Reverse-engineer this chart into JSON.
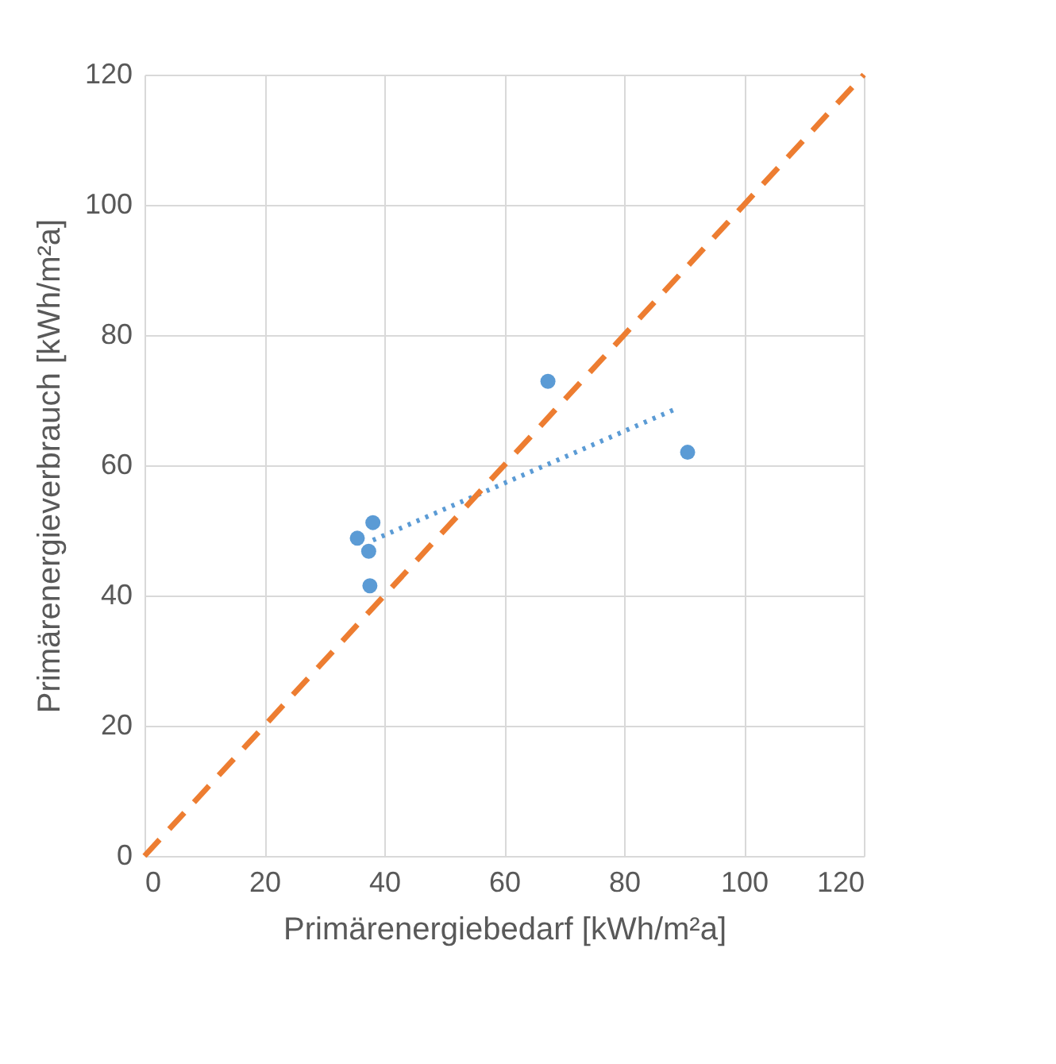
{
  "chart_data": {
    "type": "scatter",
    "xlabel": "Primärenergiebedarf [kWh/m²a]",
    "ylabel": "Primärenergieverbrauch [kWh/m²a]",
    "xlim": [
      0,
      120
    ],
    "ylim": [
      0,
      120
    ],
    "xticks": [
      0,
      20,
      40,
      60,
      80,
      100,
      120
    ],
    "yticks": [
      0,
      20,
      40,
      60,
      80,
      100,
      120
    ],
    "grid": true,
    "series": [
      {
        "marker": "circle",
        "color": "#5b9bd5",
        "x": [
          35.5,
          38.1,
          37.4,
          37.6,
          67.3,
          90.6
        ],
        "values": [
          48.8,
          51.2,
          46.8,
          41.5,
          72.9,
          62.0
        ]
      },
      {
        "type": "line",
        "marker": "none",
        "color": "#5b9bd5",
        "line_style": "dotted",
        "x": [
          38.1,
          88.2
        ],
        "values": [
          48.5,
          68.5
        ]
      },
      {
        "type": "line",
        "marker": "none",
        "color": "#ed7d31",
        "line_style": "dashed",
        "x": [
          0,
          120
        ],
        "values": [
          0,
          120
        ]
      }
    ]
  }
}
